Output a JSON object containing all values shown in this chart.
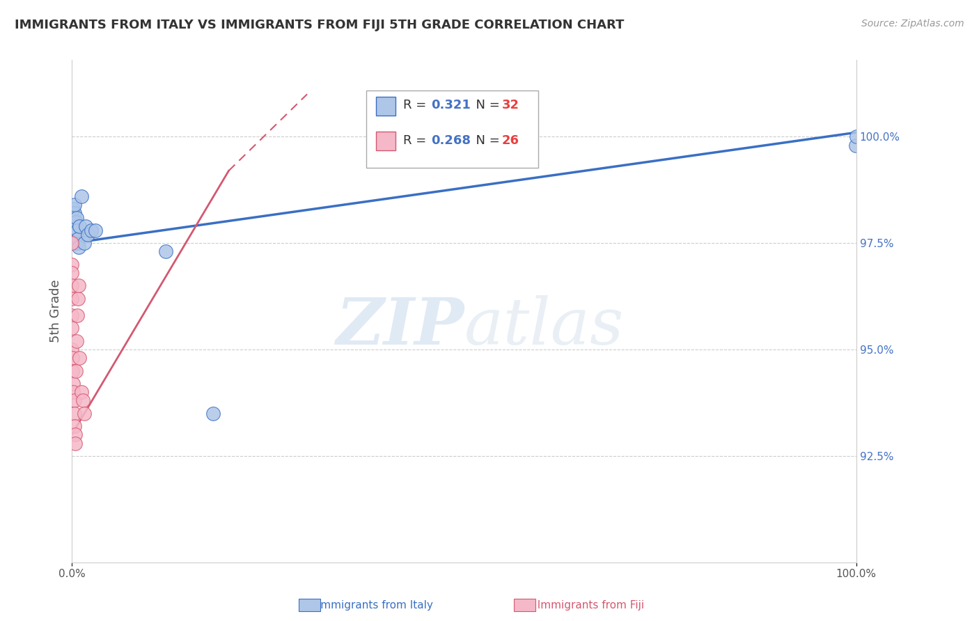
{
  "title": "IMMIGRANTS FROM ITALY VS IMMIGRANTS FROM FIJI 5TH GRADE CORRELATION CHART",
  "source": "Source: ZipAtlas.com",
  "ylabel": "5th Grade",
  "italy_R": 0.321,
  "italy_N": 32,
  "fiji_R": 0.268,
  "fiji_N": 26,
  "italy_color": "#aec6e8",
  "fiji_color": "#f5b8c8",
  "italy_line_color": "#3a6fc4",
  "fiji_line_color": "#d45870",
  "legend_R_color": "#4472c4",
  "legend_N_color": "#e84040",
  "background_color": "#ffffff",
  "watermark_zip": "ZIP",
  "watermark_atlas": "atlas",
  "right_yticks": [
    92.5,
    95.0,
    97.5,
    100.0
  ],
  "right_ytick_labels": [
    "92.5%",
    "95.0%",
    "97.5%",
    "100.0%"
  ],
  "ymin": 90.0,
  "ymax": 101.8,
  "xmin": 0.0,
  "xmax": 1.0,
  "italy_x": [
    0.0,
    0.0,
    0.0,
    0.0,
    0.002,
    0.002,
    0.003,
    0.003,
    0.003,
    0.003,
    0.004,
    0.004,
    0.005,
    0.005,
    0.005,
    0.006,
    0.006,
    0.007,
    0.007,
    0.008,
    0.009,
    0.01,
    0.012,
    0.016,
    0.018,
    0.02,
    0.025,
    0.03,
    0.12,
    0.18,
    0.999,
    1.0
  ],
  "italy_y": [
    97.7,
    97.9,
    98.1,
    98.2,
    98.0,
    98.3,
    97.8,
    98.0,
    98.2,
    98.4,
    97.5,
    97.9,
    97.8,
    98.0,
    97.6,
    97.7,
    98.1,
    97.5,
    97.8,
    97.6,
    97.4,
    97.9,
    98.6,
    97.5,
    97.9,
    97.7,
    97.8,
    97.8,
    97.3,
    93.5,
    99.8,
    100.0
  ],
  "fiji_x": [
    0.0,
    0.0,
    0.0,
    0.0,
    0.0,
    0.0,
    0.0,
    0.0,
    0.001,
    0.001,
    0.002,
    0.002,
    0.003,
    0.003,
    0.003,
    0.004,
    0.004,
    0.005,
    0.006,
    0.007,
    0.008,
    0.009,
    0.01,
    0.012,
    0.014,
    0.016
  ],
  "fiji_y": [
    97.5,
    97.0,
    96.8,
    96.5,
    96.2,
    95.8,
    95.5,
    95.0,
    94.8,
    94.5,
    94.2,
    94.0,
    93.8,
    93.5,
    93.2,
    93.0,
    92.8,
    94.5,
    95.2,
    95.8,
    96.2,
    96.5,
    94.8,
    94.0,
    93.8,
    93.5
  ]
}
